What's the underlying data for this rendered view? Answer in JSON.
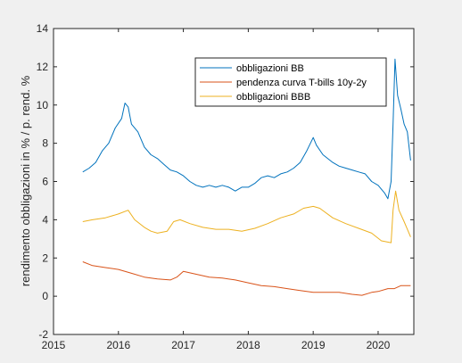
{
  "chart_data": {
    "type": "line",
    "xlabel": "",
    "ylabel": "rendimento obbligazioni in % / p. rend. %",
    "xlim": [
      2015,
      2020.55
    ],
    "ylim": [
      -2,
      14
    ],
    "x_ticks": [
      "2015",
      "2016",
      "2017",
      "2018",
      "2019",
      "2020"
    ],
    "y_ticks": [
      "-2",
      "0",
      "2",
      "4",
      "6",
      "8",
      "10",
      "12",
      "14"
    ],
    "grid": false,
    "legend_position": "top-right",
    "series": [
      {
        "name": "obbligazioni BB",
        "color": "#0072bd",
        "points": [
          [
            2015.45,
            6.5
          ],
          [
            2015.55,
            6.7
          ],
          [
            2015.65,
            7.0
          ],
          [
            2015.75,
            7.6
          ],
          [
            2015.85,
            8.0
          ],
          [
            2015.95,
            8.8
          ],
          [
            2016.05,
            9.3
          ],
          [
            2016.1,
            10.1
          ],
          [
            2016.15,
            9.9
          ],
          [
            2016.2,
            9.0
          ],
          [
            2016.3,
            8.6
          ],
          [
            2016.4,
            7.8
          ],
          [
            2016.5,
            7.4
          ],
          [
            2016.6,
            7.2
          ],
          [
            2016.7,
            6.9
          ],
          [
            2016.8,
            6.6
          ],
          [
            2016.9,
            6.5
          ],
          [
            2017.0,
            6.3
          ],
          [
            2017.1,
            6.0
          ],
          [
            2017.2,
            5.8
          ],
          [
            2017.3,
            5.7
          ],
          [
            2017.4,
            5.8
          ],
          [
            2017.5,
            5.7
          ],
          [
            2017.6,
            5.8
          ],
          [
            2017.7,
            5.7
          ],
          [
            2017.8,
            5.5
          ],
          [
            2017.9,
            5.7
          ],
          [
            2018.0,
            5.7
          ],
          [
            2018.1,
            5.9
          ],
          [
            2018.2,
            6.2
          ],
          [
            2018.3,
            6.3
          ],
          [
            2018.4,
            6.2
          ],
          [
            2018.5,
            6.4
          ],
          [
            2018.6,
            6.5
          ],
          [
            2018.7,
            6.7
          ],
          [
            2018.8,
            7.0
          ],
          [
            2018.9,
            7.6
          ],
          [
            2019.0,
            8.3
          ],
          [
            2019.05,
            7.9
          ],
          [
            2019.15,
            7.4
          ],
          [
            2019.3,
            7.0
          ],
          [
            2019.4,
            6.8
          ],
          [
            2019.5,
            6.7
          ],
          [
            2019.6,
            6.6
          ],
          [
            2019.7,
            6.5
          ],
          [
            2019.8,
            6.4
          ],
          [
            2019.9,
            6.0
          ],
          [
            2020.0,
            5.8
          ],
          [
            2020.1,
            5.4
          ],
          [
            2020.15,
            5.1
          ],
          [
            2020.2,
            6.0
          ],
          [
            2020.23,
            9.0
          ],
          [
            2020.26,
            12.4
          ],
          [
            2020.3,
            10.5
          ],
          [
            2020.35,
            9.8
          ],
          [
            2020.4,
            9.0
          ],
          [
            2020.45,
            8.6
          ],
          [
            2020.5,
            7.1
          ]
        ]
      },
      {
        "name": "pendenza curva T-bills 10y-2y",
        "color": "#d95319",
        "points": [
          [
            2015.45,
            1.8
          ],
          [
            2015.6,
            1.6
          ],
          [
            2015.8,
            1.5
          ],
          [
            2016.0,
            1.4
          ],
          [
            2016.2,
            1.2
          ],
          [
            2016.4,
            1.0
          ],
          [
            2016.6,
            0.9
          ],
          [
            2016.8,
            0.85
          ],
          [
            2016.9,
            1.0
          ],
          [
            2017.0,
            1.3
          ],
          [
            2017.2,
            1.15
          ],
          [
            2017.4,
            1.0
          ],
          [
            2017.6,
            0.95
          ],
          [
            2017.8,
            0.85
          ],
          [
            2018.0,
            0.7
          ],
          [
            2018.2,
            0.55
          ],
          [
            2018.4,
            0.5
          ],
          [
            2018.6,
            0.4
          ],
          [
            2018.8,
            0.3
          ],
          [
            2019.0,
            0.2
          ],
          [
            2019.2,
            0.2
          ],
          [
            2019.4,
            0.2
          ],
          [
            2019.6,
            0.1
          ],
          [
            2019.75,
            0.05
          ],
          [
            2019.9,
            0.2
          ],
          [
            2020.0,
            0.25
          ],
          [
            2020.15,
            0.4
          ],
          [
            2020.25,
            0.4
          ],
          [
            2020.35,
            0.55
          ],
          [
            2020.5,
            0.55
          ]
        ]
      },
      {
        "name": "obbligazioni BBB",
        "color": "#edb120",
        "points": [
          [
            2015.45,
            3.9
          ],
          [
            2015.6,
            4.0
          ],
          [
            2015.8,
            4.1
          ],
          [
            2016.0,
            4.3
          ],
          [
            2016.15,
            4.5
          ],
          [
            2016.25,
            4.0
          ],
          [
            2016.4,
            3.6
          ],
          [
            2016.5,
            3.4
          ],
          [
            2016.6,
            3.3
          ],
          [
            2016.75,
            3.4
          ],
          [
            2016.85,
            3.9
          ],
          [
            2016.95,
            4.0
          ],
          [
            2017.1,
            3.8
          ],
          [
            2017.3,
            3.6
          ],
          [
            2017.5,
            3.5
          ],
          [
            2017.7,
            3.5
          ],
          [
            2017.9,
            3.4
          ],
          [
            2018.1,
            3.55
          ],
          [
            2018.3,
            3.8
          ],
          [
            2018.5,
            4.1
          ],
          [
            2018.7,
            4.3
          ],
          [
            2018.85,
            4.6
          ],
          [
            2019.0,
            4.7
          ],
          [
            2019.1,
            4.6
          ],
          [
            2019.3,
            4.1
          ],
          [
            2019.5,
            3.8
          ],
          [
            2019.7,
            3.55
          ],
          [
            2019.9,
            3.3
          ],
          [
            2020.05,
            2.9
          ],
          [
            2020.2,
            2.8
          ],
          [
            2020.23,
            4.5
          ],
          [
            2020.27,
            5.5
          ],
          [
            2020.32,
            4.5
          ],
          [
            2020.4,
            3.9
          ],
          [
            2020.5,
            3.1
          ]
        ]
      }
    ]
  }
}
